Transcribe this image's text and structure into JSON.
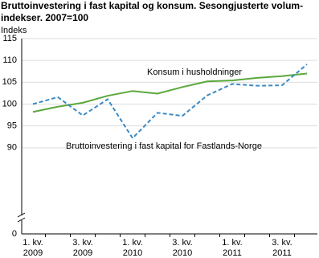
{
  "chart_data": {
    "type": "line",
    "title": [
      "Bruttoinvestering i fast kapital og konsum. Sesongjusterte volum-",
      "indekser. 2007=100"
    ],
    "y_label": "Indeks",
    "categories": [
      [
        "1. kv.",
        "2009"
      ],
      null,
      [
        "3. kv.",
        "2009"
      ],
      null,
      [
        "1. kv.",
        "2010"
      ],
      null,
      [
        "3. kv.",
        "2010"
      ],
      null,
      [
        "1. kv.",
        "2011"
      ],
      null,
      [
        "3. kv.",
        "2011"
      ],
      null
    ],
    "series": [
      {
        "name": "Konsum i husholdninger",
        "color": "#5aa83c",
        "dashed": false,
        "values": [
          98.2,
          99.4,
          100.3,
          101.9,
          103.0,
          102.4,
          103.9,
          105.2,
          105.4,
          106.0,
          106.4,
          107.0
        ]
      },
      {
        "name": "Bruttoinvestering i fast kapital for Fastlands-Norge",
        "color": "#3b8ac4",
        "dashed": true,
        "values": [
          100.0,
          101.6,
          97.4,
          101.1,
          92.2,
          98.0,
          97.3,
          102.0,
          104.6,
          104.2,
          104.3,
          109.1
        ]
      }
    ],
    "ylim": [
      0,
      115
    ],
    "yticks": [
      0,
      90,
      95,
      100,
      105,
      110,
      115
    ],
    "y_axis_break": true,
    "grid": true
  }
}
